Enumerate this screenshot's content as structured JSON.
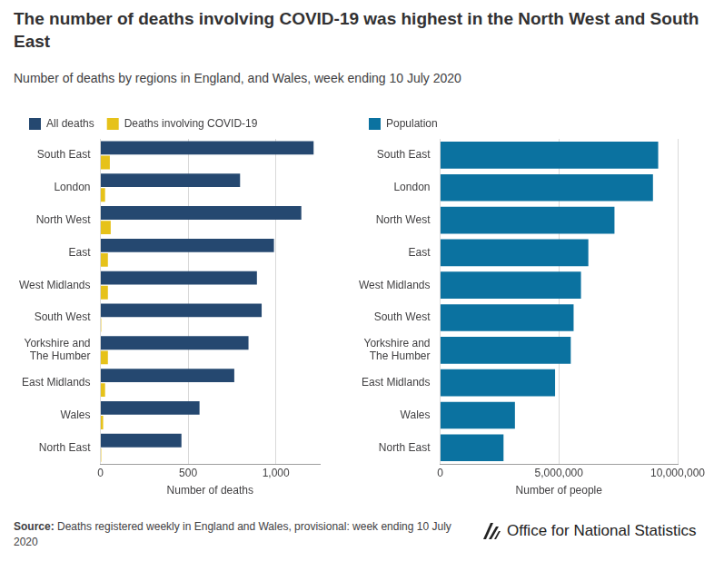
{
  "title": "The number of deaths involving COVID-19 was highest in the North West and South East",
  "subtitle": "Number of deaths by regions in England, and Wales, week ending 10 July 2020",
  "source_label": "Source:",
  "source": "Deaths registered weekly in England and Wales, provisional: week ending 10 July 2020",
  "logo": "Office for National Statistics",
  "chart_data": [
    {
      "type": "bar",
      "orientation": "horizontal",
      "grid": true,
      "legend": "top-left",
      "categories": [
        "South East",
        "London",
        "North West",
        "East",
        "West Midlands",
        "South West",
        "Yorkshire and The Humber",
        "East Midlands",
        "Wales",
        "North East"
      ],
      "series": [
        {
          "name": "All deaths",
          "color": "#254870",
          "values": [
            1215,
            796,
            1145,
            989,
            892,
            919,
            844,
            763,
            565,
            462
          ]
        },
        {
          "name": "Deaths involving COVID-19",
          "color": "#e6c21a",
          "values": [
            54,
            27,
            59,
            43,
            43,
            5,
            43,
            27,
            16,
            5
          ]
        }
      ],
      "xlim": [
        0,
        1250
      ],
      "xticks": [
        0,
        500,
        {
          "value": 1000,
          "label": "1,000"
        }
      ],
      "xlabel": "Number of deaths"
    },
    {
      "type": "bar",
      "orientation": "horizontal",
      "grid": true,
      "legend": "top-left",
      "categories": [
        "South East",
        "London",
        "North West",
        "East",
        "West Midlands",
        "South West",
        "Yorkshire and The Humber",
        "East Midlands",
        "Wales",
        "North East"
      ],
      "series": [
        {
          "name": "Population",
          "color": "#0b72a0",
          "values": [
            9180000,
            8960000,
            7340000,
            6240000,
            5930000,
            5620000,
            5500000,
            4840000,
            3150000,
            2670000
          ]
        }
      ],
      "xlim": [
        0,
        10000000
      ],
      "xticks": [
        0,
        {
          "value": 5000000,
          "label": "5,000,000"
        },
        {
          "value": 10000000,
          "label": "10,000,000"
        }
      ],
      "xlabel": "Number of people"
    }
  ]
}
